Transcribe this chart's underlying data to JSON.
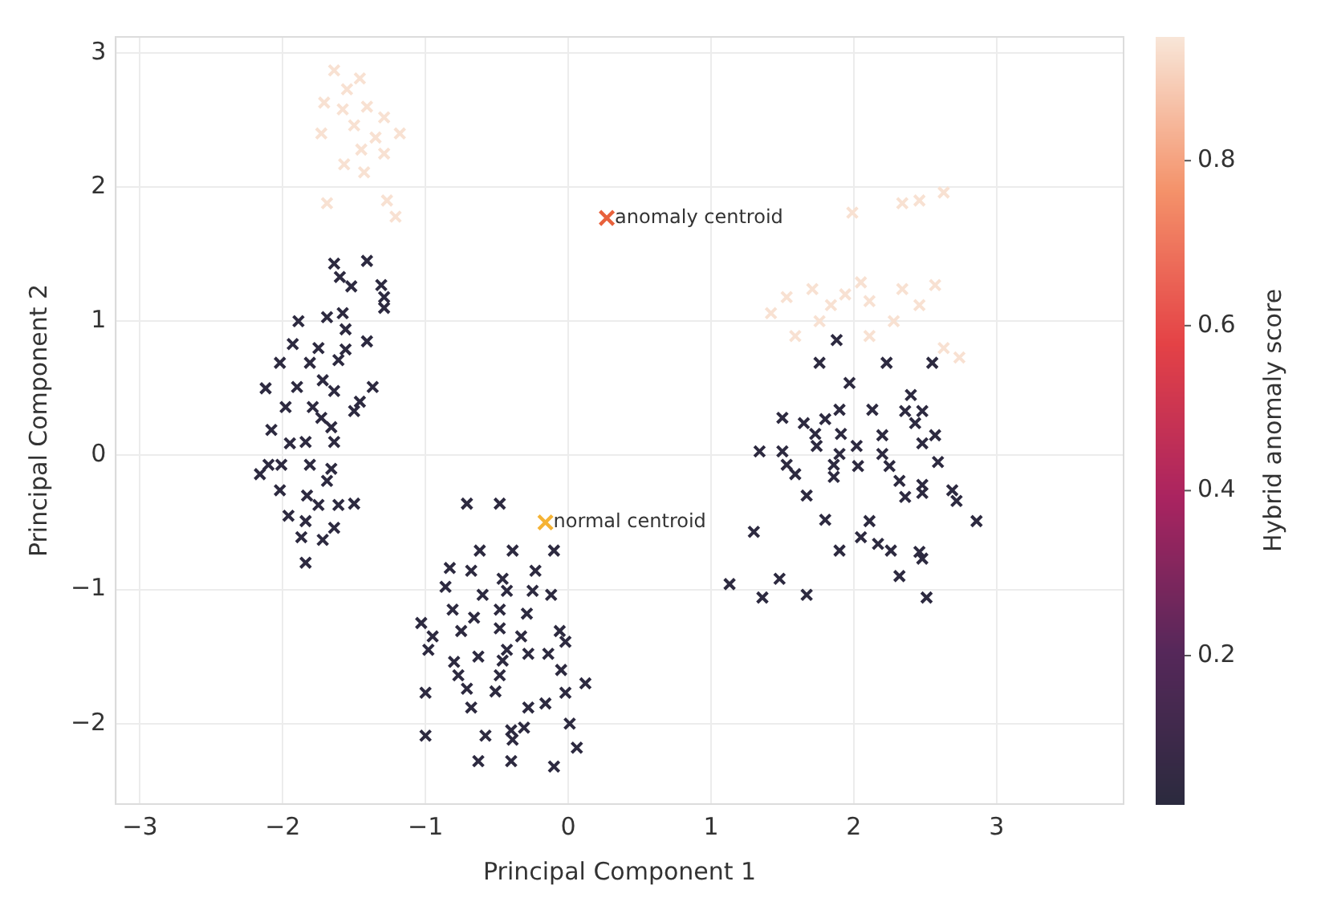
{
  "chart_data": {
    "type": "scatter",
    "xlabel": "Principal Component 1",
    "ylabel": "Principal Component 2",
    "clabel": "Hybrid anomaly score",
    "clim": [
      0.02,
      0.95
    ],
    "cticks": [
      0.2,
      0.4,
      0.6,
      0.8
    ],
    "xlim": [
      -3.17,
      3.89
    ],
    "ylim": [
      -2.6,
      3.12
    ],
    "xticks": [
      -3,
      -2,
      -1,
      0,
      1,
      2,
      3
    ],
    "yticks": [
      -2,
      -1,
      0,
      1,
      2,
      3
    ],
    "grid": true,
    "legend": false,
    "marker": "cross",
    "series": [
      {
        "x": [
          -1.64,
          -1.41,
          -1.6,
          -1.52,
          -1.31,
          -1.29,
          -1.29,
          -1.89,
          -1.69,
          -1.58,
          -1.56,
          -1.41,
          -1.93,
          -1.75,
          -1.56,
          -2.02,
          -1.81,
          -1.61,
          -2.12,
          -1.9,
          -1.72,
          -1.64,
          -1.37,
          -1.46,
          -1.98,
          -1.73,
          -1.5,
          -2.08,
          -1.95,
          -1.84,
          -1.64,
          -2.16,
          -2.01,
          -1.81,
          -1.66,
          -2.02,
          -1.83,
          -1.75,
          -1.61,
          -1.5,
          -1.96,
          -1.84,
          -1.64,
          -1.87,
          -1.72,
          -1.84,
          -1.69,
          -1.79,
          -1.66,
          -2.1,
          -0.71,
          -0.48,
          -0.62,
          -0.39,
          -0.1,
          -0.83,
          -0.68,
          -0.46,
          -0.23,
          -0.86,
          -0.6,
          -0.43,
          -0.25,
          -0.12,
          -1.03,
          -0.81,
          -0.66,
          -0.48,
          -0.29,
          -0.95,
          -0.75,
          -0.48,
          -0.33,
          -0.06,
          -0.98,
          -0.43,
          -0.14,
          -0.02,
          -0.8,
          -0.63,
          -0.46,
          -0.28,
          -0.77,
          -0.48,
          -0.05,
          0.12,
          -1.0,
          -0.71,
          -0.51,
          -0.28,
          -0.16,
          -0.02,
          -0.68,
          -1.0,
          -0.58,
          -0.4,
          -0.31,
          0.01,
          0.06,
          -0.63,
          -0.4,
          -0.1,
          -0.39,
          1.88,
          1.76,
          2.23,
          2.55,
          1.97,
          2.4,
          1.9,
          2.13,
          2.36,
          2.48,
          1.5,
          1.65,
          1.8,
          1.73,
          1.91,
          2.2,
          2.43,
          2.57,
          1.34,
          1.5,
          1.74,
          1.9,
          2.02,
          2.2,
          2.48,
          1.53,
          1.86,
          2.03,
          2.25,
          2.59,
          1.59,
          1.86,
          2.32,
          2.48,
          1.67,
          2.36,
          2.48,
          2.69,
          2.72,
          2.86,
          1.8,
          2.11,
          1.3,
          2.05,
          2.17,
          2.26,
          1.9,
          2.46,
          2.48,
          1.13,
          1.48,
          1.36,
          1.67,
          2.32,
          2.51
        ],
        "values": [
          1.43,
          1.45,
          1.33,
          1.26,
          1.27,
          1.18,
          1.1,
          1.0,
          1.03,
          1.06,
          0.94,
          0.85,
          0.83,
          0.8,
          0.79,
          0.69,
          0.69,
          0.71,
          0.5,
          0.51,
          0.56,
          0.48,
          0.51,
          0.4,
          0.36,
          0.28,
          0.33,
          0.19,
          0.09,
          0.1,
          0.1,
          -0.14,
          -0.07,
          -0.07,
          -0.1,
          -0.26,
          -0.3,
          -0.37,
          -0.37,
          -0.36,
          -0.45,
          -0.49,
          -0.54,
          -0.61,
          -0.63,
          -0.8,
          -0.19,
          0.36,
          0.21,
          -0.07,
          -0.36,
          -0.36,
          -0.71,
          -0.71,
          -0.71,
          -0.84,
          -0.86,
          -0.92,
          -0.86,
          -0.98,
          -1.04,
          -1.01,
          -1.01,
          -1.04,
          -1.25,
          -1.15,
          -1.21,
          -1.15,
          -1.18,
          -1.35,
          -1.31,
          -1.29,
          -1.35,
          -1.31,
          -1.45,
          -1.45,
          -1.48,
          -1.39,
          -1.54,
          -1.5,
          -1.53,
          -1.48,
          -1.64,
          -1.64,
          -1.6,
          -1.7,
          -1.77,
          -1.74,
          -1.76,
          -1.88,
          -1.85,
          -1.77,
          -1.88,
          -2.09,
          -2.09,
          -2.05,
          -2.03,
          -2.0,
          -2.18,
          -2.28,
          -2.28,
          -2.32,
          -2.12,
          0.86,
          0.69,
          0.69,
          0.69,
          0.54,
          0.45,
          0.34,
          0.34,
          0.33,
          0.33,
          0.28,
          0.24,
          0.27,
          0.16,
          0.16,
          0.15,
          0.24,
          0.15,
          0.03,
          0.03,
          0.07,
          0.01,
          0.07,
          0.01,
          0.09,
          -0.07,
          -0.07,
          -0.08,
          -0.08,
          -0.05,
          -0.14,
          -0.16,
          -0.19,
          -0.22,
          -0.3,
          -0.31,
          -0.28,
          -0.26,
          -0.34,
          -0.49,
          -0.48,
          -0.49,
          -0.57,
          -0.61,
          -0.66,
          -0.71,
          -0.71,
          -0.72,
          -0.77,
          -0.96,
          -0.92,
          -1.06,
          -1.04,
          -0.9,
          -1.06
        ],
        "cvalues": [
          0.03,
          0.03,
          0.03,
          0.03,
          0.03,
          0.03,
          0.03,
          0.03,
          0.03,
          0.03,
          0.03,
          0.03,
          0.03,
          0.03,
          0.03,
          0.03,
          0.03,
          0.03,
          0.03,
          0.03,
          0.03,
          0.03,
          0.03,
          0.03,
          0.03,
          0.03,
          0.03,
          0.03,
          0.03,
          0.03,
          0.03,
          0.03,
          0.03,
          0.03,
          0.03,
          0.03,
          0.03,
          0.03,
          0.03,
          0.03,
          0.03,
          0.03,
          0.03,
          0.03,
          0.03,
          0.03,
          0.03,
          0.03,
          0.03,
          0.03,
          0.03,
          0.03,
          0.03,
          0.03,
          0.03,
          0.03,
          0.03,
          0.03,
          0.03,
          0.03,
          0.03,
          0.03,
          0.03,
          0.03,
          0.03,
          0.03,
          0.03,
          0.03,
          0.03,
          0.03,
          0.03,
          0.03,
          0.03,
          0.03,
          0.03,
          0.03,
          0.03,
          0.03,
          0.03,
          0.03,
          0.03,
          0.03,
          0.03,
          0.03,
          0.03,
          0.03,
          0.03,
          0.03,
          0.03,
          0.03,
          0.03,
          0.03,
          0.03,
          0.03,
          0.03,
          0.03,
          0.03,
          0.03,
          0.03,
          0.03,
          0.03,
          0.03,
          0.03,
          0.03,
          0.03,
          0.03,
          0.03,
          0.03,
          0.03,
          0.03,
          0.03,
          0.03,
          0.03,
          0.03,
          0.03,
          0.03,
          0.03,
          0.03,
          0.03,
          0.03,
          0.03,
          0.03,
          0.03,
          0.03,
          0.03,
          0.03,
          0.03,
          0.03,
          0.03,
          0.03,
          0.03,
          0.03,
          0.03,
          0.03,
          0.03,
          0.03,
          0.03,
          0.03,
          0.03,
          0.03,
          0.03,
          0.03,
          0.03,
          0.03,
          0.03,
          0.03,
          0.03,
          0.03,
          0.03,
          0.03,
          0.03,
          0.03,
          0.03,
          0.03,
          0.03,
          0.03,
          0.03,
          0.03
        ]
      },
      {
        "x": [
          -1.64,
          -1.46,
          -1.55,
          -1.71,
          -1.58,
          -1.41,
          -1.29,
          -1.5,
          -1.73,
          -1.35,
          -1.18,
          -1.45,
          -1.29,
          -1.57,
          -1.43,
          -1.69,
          -1.27,
          -1.21,
          1.42,
          1.53,
          1.71,
          1.84,
          1.94,
          2.11,
          2.05,
          2.34,
          2.46,
          2.57,
          1.59,
          2.11,
          2.63,
          2.74,
          1.76,
          2.28,
          1.99,
          2.34,
          2.46,
          2.63
        ],
        "values": [
          2.87,
          2.81,
          2.73,
          2.63,
          2.58,
          2.6,
          2.52,
          2.46,
          2.4,
          2.37,
          2.4,
          2.28,
          2.25,
          2.17,
          2.11,
          1.88,
          1.9,
          1.78,
          1.06,
          1.18,
          1.24,
          1.12,
          1.2,
          1.15,
          1.29,
          1.24,
          1.12,
          1.27,
          0.89,
          0.89,
          0.8,
          0.73,
          1.0,
          1.0,
          1.81,
          1.88,
          1.9,
          1.96
        ],
        "cvalues": [
          0.94,
          0.94,
          0.94,
          0.94,
          0.94,
          0.94,
          0.94,
          0.94,
          0.94,
          0.94,
          0.94,
          0.94,
          0.94,
          0.94,
          0.94,
          0.94,
          0.94,
          0.94,
          0.94,
          0.94,
          0.94,
          0.94,
          0.94,
          0.94,
          0.94,
          0.94,
          0.94,
          0.94,
          0.94,
          0.94,
          0.94,
          0.94,
          0.94,
          0.94,
          0.94,
          0.94,
          0.94,
          0.94
        ]
      },
      {
        "x": [
          0.27
        ],
        "values": [
          1.77
        ],
        "color": "#e8613c"
      },
      {
        "x": [
          -0.16
        ],
        "values": [
          -0.5
        ],
        "color": "#f5b335"
      }
    ],
    "annotations": [
      {
        "text": "anomaly centroid",
        "x": 0.27,
        "y": 1.77
      },
      {
        "text": "normal centroid",
        "x": -0.16,
        "y": -0.5
      }
    ]
  }
}
